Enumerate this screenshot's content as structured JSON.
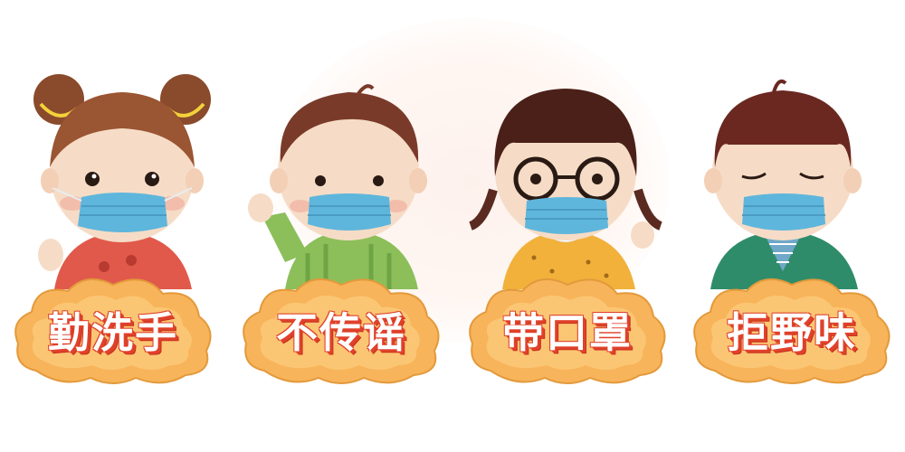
{
  "cards": [
    {
      "label": "勤洗手",
      "icon": "girl-with-buns-icon"
    },
    {
      "label": "不传谣",
      "icon": "boy-waving-icon"
    },
    {
      "label": "带口罩",
      "icon": "girl-with-glasses-icon"
    },
    {
      "label": "拒野味",
      "icon": "boy-eyes-closed-icon"
    }
  ],
  "colors": {
    "cloud_fill": "#f8b45a",
    "cloud_inner": "#fbc674",
    "cloud_outline": "#e39a3c",
    "label_shadow": "#e0412a",
    "mask": "#5fb6dc",
    "hair": "#6a2e22",
    "skin": "#f6dcc6"
  }
}
